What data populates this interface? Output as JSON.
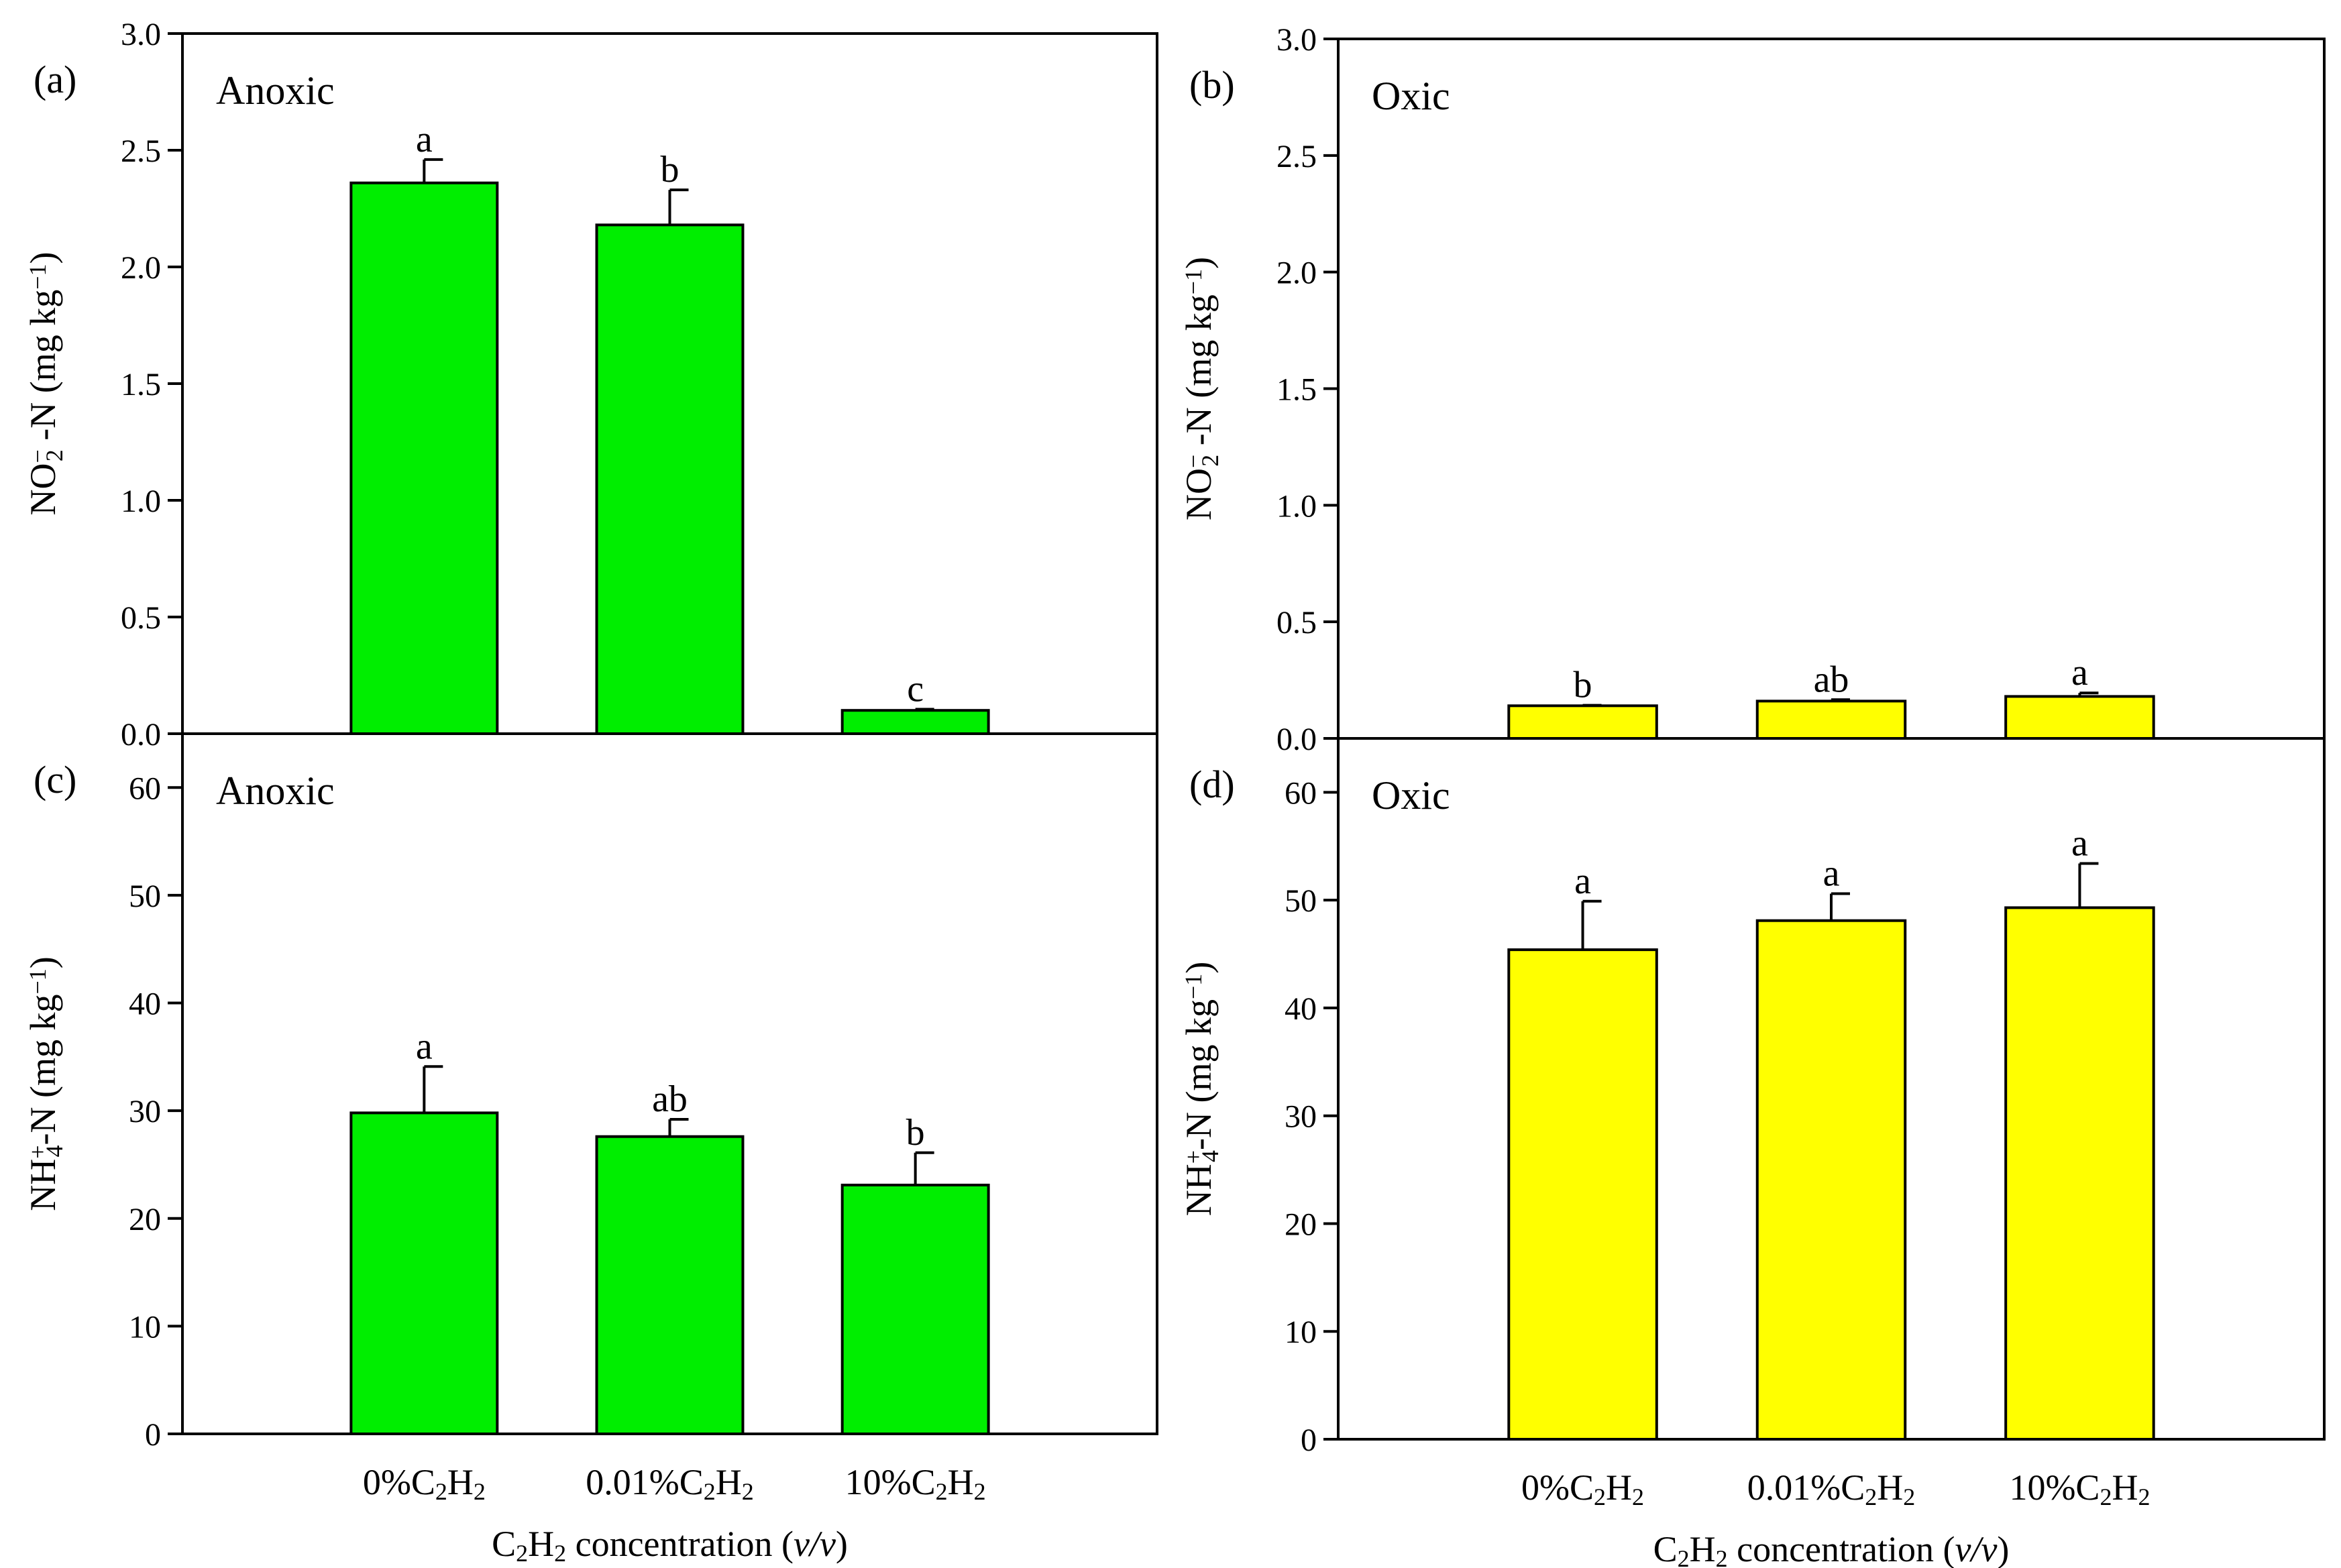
{
  "chart_data": [
    {
      "type": "bar",
      "panel": "(a)",
      "condition": "Anoxic",
      "ylabel": "NO₂⁻-N (mg kg⁻¹)",
      "ylabel_parts": {
        "base": "NO",
        "sub": "2",
        "sup": "−",
        "tail": " -N (mg kg",
        "unit_sup": "−1",
        "close": ")"
      },
      "ylim": [
        0,
        3.0
      ],
      "yticks": [
        "0.0",
        "0.5",
        "1.0",
        "1.5",
        "2.0",
        "2.5",
        "3.0"
      ],
      "categories": [
        "0%C₂H₂",
        "0.01%C₂H₂",
        "10%C₂H₂"
      ],
      "values": [
        2.36,
        2.18,
        0.1
      ],
      "errors": [
        0.1,
        0.15,
        0.005
      ],
      "significance": [
        "a",
        "b",
        "c"
      ],
      "bar_color": "#00ee00",
      "show_xlabels": false
    },
    {
      "type": "bar",
      "panel": "(b)",
      "condition": "Oxic",
      "ylabel": "NO₂⁻-N (mg kg⁻¹)",
      "ylabel_parts": {
        "base": "NO",
        "sub": "2",
        "sup": "−",
        "tail": " -N (mg kg",
        "unit_sup": "−1",
        "close": ")"
      },
      "ylim": [
        0,
        3.0
      ],
      "yticks": [
        "0.0",
        "0.5",
        "1.0",
        "1.5",
        "2.0",
        "2.5",
        "3.0"
      ],
      "categories": [
        "0%C₂H₂",
        "0.01%C₂H₂",
        "10%C₂H₂"
      ],
      "values": [
        0.14,
        0.16,
        0.18
      ],
      "errors": [
        0.002,
        0.006,
        0.015
      ],
      "significance": [
        "b",
        "ab",
        "a"
      ],
      "bar_color": "#ffff00",
      "show_xlabels": false
    },
    {
      "type": "bar",
      "panel": "(c)",
      "condition": "Anoxic",
      "ylabel": "NH₄⁺-N (mg kg⁻¹)",
      "ylabel_parts": {
        "base": "NH",
        "sub": "4",
        "sup": "+",
        "tail": "-N (mg kg",
        "unit_sup": "−1",
        "close": ")"
      },
      "ylim": [
        0,
        65
      ],
      "yticks": [
        "0",
        "10",
        "20",
        "30",
        "40",
        "50",
        "60"
      ],
      "categories": [
        "0%C₂H₂",
        "0.01%C₂H₂",
        "10%C₂H₂"
      ],
      "values": [
        29.8,
        27.6,
        23.1
      ],
      "errors": [
        4.3,
        1.6,
        3.0
      ],
      "significance": [
        "a",
        "ab",
        "b"
      ],
      "bar_color": "#00ee00",
      "show_xlabels": true
    },
    {
      "type": "bar",
      "panel": "(d)",
      "condition": "Oxic",
      "ylabel": "NH₄⁺-N (mg kg⁻¹)",
      "ylabel_parts": {
        "base": "NH",
        "sub": "4",
        "sup": "+",
        "tail": "-N (mg kg",
        "unit_sup": "−1",
        "close": ")"
      },
      "ylim": [
        0,
        65
      ],
      "yticks": [
        "0",
        "10",
        "20",
        "30",
        "40",
        "50",
        "60"
      ],
      "categories": [
        "0%C₂H₂",
        "0.01%C₂H₂",
        "10%C₂H₂"
      ],
      "values": [
        45.4,
        48.1,
        49.3
      ],
      "errors": [
        4.5,
        2.5,
        4.1
      ],
      "significance": [
        "a",
        "a",
        "a"
      ],
      "bar_color": "#ffff00",
      "show_xlabels": true
    }
  ],
  "xlabel": "C₂H₂ concentration (v/v)",
  "xlabel_parts": {
    "main": "C",
    "sub1": "2",
    "mid": "H",
    "sub2": "2",
    "text": " concentration (",
    "italic": "v/v",
    "close": ")"
  }
}
